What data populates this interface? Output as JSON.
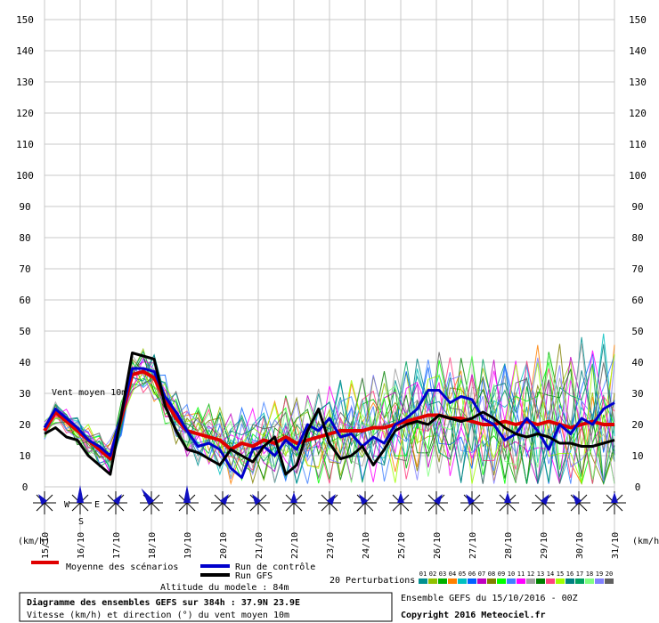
{
  "chart_data": {
    "type": "line",
    "title": "Diagramme des ensembles GEFS sur 384h : 37.9N 23.9E",
    "subtitle": "Vitesse (km/h) et direction (°) du vent moyen 10m",
    "ylabel": "(km/h)",
    "ylabel_right": "(km/h)",
    "inner_label": "Vent moyen 10m",
    "altitude_text": "Altitude du modele : 84m",
    "ensemble_text": "Ensemble GEFS du 15/10/2016 - 00Z",
    "copyright": "Copyright 2016 Meteociel.fr",
    "ylim": [
      0,
      150
    ],
    "y_ticks": [
      0,
      10,
      20,
      30,
      40,
      50,
      60,
      70,
      80,
      90,
      100,
      110,
      120,
      130,
      140,
      150
    ],
    "x_labels": [
      "15/10",
      "16/10",
      "17/10",
      "18/10",
      "19/10",
      "20/10",
      "21/10",
      "22/10",
      "23/10",
      "24/10",
      "25/10",
      "26/10",
      "27/10",
      "28/10",
      "29/10",
      "30/10",
      "31/10"
    ],
    "grid": true,
    "legend": {
      "mean": "Moyenne des scénarios",
      "control": "Run de contrôle",
      "gfs": "Run GFS",
      "perturbations": "20 Perturbations",
      "pert_labels": [
        "01",
        "02",
        "03",
        "04",
        "05",
        "06",
        "07",
        "08",
        "09",
        "10",
        "11",
        "12",
        "13",
        "14",
        "15",
        "16",
        "17",
        "18",
        "19",
        "20"
      ]
    },
    "compass": {
      "w": "W",
      "e": "E",
      "s": "S"
    },
    "colors": {
      "mean": "#e00000",
      "control": "#0000cc",
      "gfs": "#000000",
      "perturbations": [
        "#009090",
        "#90c000",
        "#00b000",
        "#ff8000",
        "#00c0c0",
        "#0060ff",
        "#c000c0",
        "#808000",
        "#00ff00",
        "#4080ff",
        "#ff00ff",
        "#a0a0a0",
        "#008000",
        "#ff4080",
        "#a0ff00",
        "#008080",
        "#00a060",
        "#80ff80",
        "#8080ff",
        "#606060"
      ]
    },
    "series": [
      {
        "name": "Moyenne des scénarios",
        "values": [
          18,
          24,
          21,
          18,
          15,
          12,
          9,
          22,
          36,
          37,
          35,
          28,
          22,
          18,
          17,
          16,
          15,
          12,
          14,
          13,
          15,
          14,
          16,
          14,
          15,
          16,
          17,
          18,
          18,
          18,
          19,
          19,
          20,
          21,
          22,
          23,
          23,
          22,
          22,
          21,
          20,
          20,
          21,
          20,
          21,
          20,
          21,
          20,
          19,
          20,
          21,
          20,
          20
        ]
      },
      {
        "name": "Run de contrôle",
        "values": [
          19,
          25,
          22,
          19,
          15,
          13,
          10,
          23,
          38,
          38,
          37,
          29,
          24,
          18,
          13,
          14,
          12,
          6,
          3,
          12,
          13,
          10,
          15,
          12,
          20,
          18,
          22,
          16,
          17,
          13,
          16,
          14,
          20,
          22,
          25,
          31,
          31,
          27,
          29,
          28,
          22,
          20,
          15,
          17,
          22,
          18,
          12,
          20,
          17,
          22,
          20,
          25,
          27
        ]
      },
      {
        "name": "Run GFS",
        "values": [
          17,
          19,
          16,
          15,
          10,
          7,
          4,
          23,
          43,
          42,
          41,
          26,
          18,
          12,
          11,
          9,
          7,
          12,
          10,
          8,
          13,
          16,
          4,
          7,
          18,
          25,
          14,
          9,
          10,
          13,
          7,
          12,
          18,
          20,
          21,
          20,
          23,
          22,
          21,
          22,
          24,
          22,
          19,
          17,
          16,
          17,
          16,
          14,
          14,
          13,
          13,
          14,
          15
        ]
      }
    ]
  }
}
